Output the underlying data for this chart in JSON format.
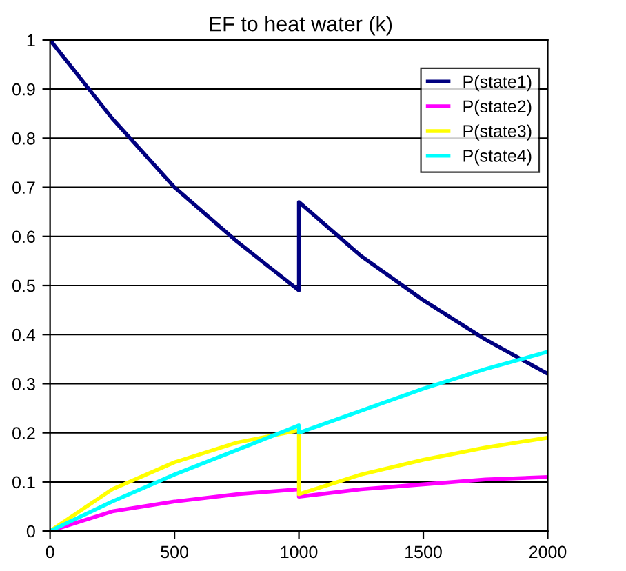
{
  "chart_data": {
    "type": "line",
    "title": "EF to heat water (k)",
    "x": [
      0,
      250,
      500,
      750,
      1000,
      1000,
      1250,
      1500,
      1750,
      2000
    ],
    "series": [
      {
        "name": "P(state1)",
        "color": "#000080",
        "values": [
          1,
          0.84,
          0.7,
          0.59,
          0.49,
          0.67,
          0.56,
          0.47,
          0.39,
          0.32
        ]
      },
      {
        "name": "P(state2)",
        "color": "#ff00ff",
        "values": [
          0,
          0.04,
          0.06,
          0.075,
          0.085,
          0.07,
          0.085,
          0.095,
          0.105,
          0.11
        ]
      },
      {
        "name": "P(state3)",
        "color": "#ffff00",
        "values": [
          0,
          0.085,
          0.14,
          0.18,
          0.205,
          0.075,
          0.115,
          0.145,
          0.17,
          0.19
        ]
      },
      {
        "name": "P(state4)",
        "color": "#00ffff",
        "values": [
          0,
          0.06,
          0.115,
          0.165,
          0.215,
          0.2,
          0.245,
          0.29,
          0.33,
          0.365
        ]
      }
    ],
    "xlim": [
      0,
      2000
    ],
    "xticks": [
      0,
      500,
      1000,
      1500,
      2000
    ],
    "ylim": [
      0,
      1
    ],
    "yticks": [
      0,
      0.1,
      0.2,
      0.3,
      0.4,
      0.5,
      0.6,
      0.7,
      0.8,
      0.9,
      1
    ],
    "grid": "y",
    "legend": "top right",
    "marker": "none",
    "line_style": "solid"
  }
}
